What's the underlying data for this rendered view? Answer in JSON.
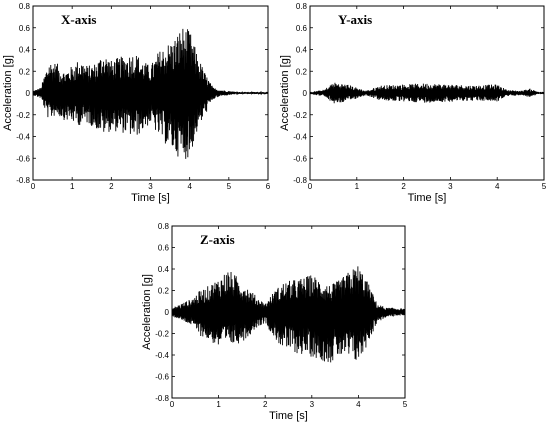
{
  "chart_data": [
    {
      "type": "line",
      "title": "X-axis",
      "xlabel": "Time [s]",
      "ylabel": "Acceleration [g]",
      "xlim": [
        0,
        6
      ],
      "ylim": [
        -0.8,
        0.8
      ],
      "xticks": [
        "0",
        "1",
        "2",
        "3",
        "4",
        "5",
        "6"
      ],
      "yticks": [
        "0.8",
        "0.6",
        "0.4",
        "0.2",
        "0",
        "-0.2",
        "-0.4",
        "-0.6",
        "-0.8"
      ],
      "grid": false,
      "color": "#000000",
      "series": [
        {
          "x": [
            0,
            0.2,
            0.4,
            0.6,
            0.8,
            1.0,
            1.2,
            1.4,
            1.6,
            1.8,
            2.0,
            2.2,
            2.4,
            2.6,
            2.8,
            3.0,
            3.2,
            3.4,
            3.6,
            3.8,
            4.0,
            4.2,
            4.4,
            4.6,
            4.8,
            5.0,
            5.2,
            5.4,
            5.6,
            5.8,
            6.0
          ],
          "upper": [
            0.02,
            0.05,
            0.3,
            0.28,
            0.2,
            0.25,
            0.32,
            0.25,
            0.28,
            0.38,
            0.3,
            0.33,
            0.35,
            0.38,
            0.3,
            0.25,
            0.38,
            0.45,
            0.5,
            0.62,
            0.58,
            0.35,
            0.18,
            0.05,
            0.03,
            0.02,
            0.01,
            0.01,
            0.01,
            0.01,
            0.01
          ],
          "lower": [
            -0.02,
            -0.05,
            -0.25,
            -0.2,
            -0.25,
            -0.27,
            -0.3,
            -0.28,
            -0.33,
            -0.38,
            -0.35,
            -0.36,
            -0.38,
            -0.42,
            -0.35,
            -0.28,
            -0.4,
            -0.48,
            -0.55,
            -0.62,
            -0.6,
            -0.35,
            -0.2,
            -0.06,
            -0.03,
            -0.02,
            -0.01,
            -0.01,
            -0.01,
            -0.01,
            -0.01
          ]
        }
      ]
    },
    {
      "type": "line",
      "title": "Y-axis",
      "xlabel": "Time [s]",
      "ylabel": "Acceleration [g]",
      "xlim": [
        0,
        5
      ],
      "ylim": [
        -0.8,
        0.8
      ],
      "xticks": [
        "0",
        "1",
        "2",
        "3",
        "4",
        "5"
      ],
      "yticks": [
        "0.8",
        "0.6",
        "0.4",
        "0.2",
        "0",
        "-0.2",
        "-0.4",
        "-0.6",
        "-0.8"
      ],
      "grid": false,
      "color": "#000000",
      "series": [
        {
          "x": [
            0,
            0.3,
            0.5,
            0.8,
            1.0,
            1.2,
            1.5,
            2.0,
            2.5,
            3.0,
            3.5,
            4.0,
            4.2,
            4.5,
            4.7,
            4.9,
            5.0
          ],
          "upper": [
            0.01,
            0.03,
            0.1,
            0.08,
            0.05,
            0.02,
            0.07,
            0.08,
            0.09,
            0.08,
            0.07,
            0.08,
            0.03,
            0.02,
            0.04,
            0.01,
            0.01
          ],
          "lower": [
            -0.01,
            -0.03,
            -0.1,
            -0.08,
            -0.05,
            -0.02,
            -0.07,
            -0.08,
            -0.09,
            -0.08,
            -0.07,
            -0.08,
            -0.03,
            -0.02,
            -0.04,
            -0.01,
            -0.01
          ]
        }
      ]
    },
    {
      "type": "line",
      "title": "Z-axis",
      "xlabel": "Time [s]",
      "ylabel": "Acceleration [g]",
      "xlim": [
        0,
        5
      ],
      "ylim": [
        -0.8,
        0.8
      ],
      "xticks": [
        "0",
        "1",
        "2",
        "3",
        "4",
        "5"
      ],
      "yticks": [
        "0.8",
        "0.6",
        "0.4",
        "0.2",
        "0",
        "-0.2",
        "-0.4",
        "-0.6",
        "-0.8"
      ],
      "grid": false,
      "color": "#000000",
      "series": [
        {
          "x": [
            0,
            0.2,
            0.4,
            0.6,
            0.8,
            1.0,
            1.2,
            1.4,
            1.6,
            1.8,
            2.0,
            2.2,
            2.4,
            2.6,
            2.8,
            3.0,
            3.2,
            3.4,
            3.6,
            3.8,
            4.0,
            4.2,
            4.4,
            4.6,
            4.8,
            5.0
          ],
          "upper": [
            0.04,
            0.08,
            0.12,
            0.2,
            0.25,
            0.32,
            0.4,
            0.33,
            0.25,
            0.15,
            0.08,
            0.2,
            0.28,
            0.3,
            0.32,
            0.35,
            0.3,
            0.25,
            0.3,
            0.38,
            0.45,
            0.28,
            0.08,
            0.04,
            0.04,
            0.03
          ],
          "lower": [
            -0.04,
            -0.08,
            -0.12,
            -0.22,
            -0.27,
            -0.33,
            -0.32,
            -0.3,
            -0.25,
            -0.15,
            -0.1,
            -0.25,
            -0.35,
            -0.38,
            -0.4,
            -0.42,
            -0.45,
            -0.48,
            -0.42,
            -0.45,
            -0.48,
            -0.3,
            -0.1,
            -0.05,
            -0.04,
            -0.03
          ]
        }
      ]
    }
  ]
}
